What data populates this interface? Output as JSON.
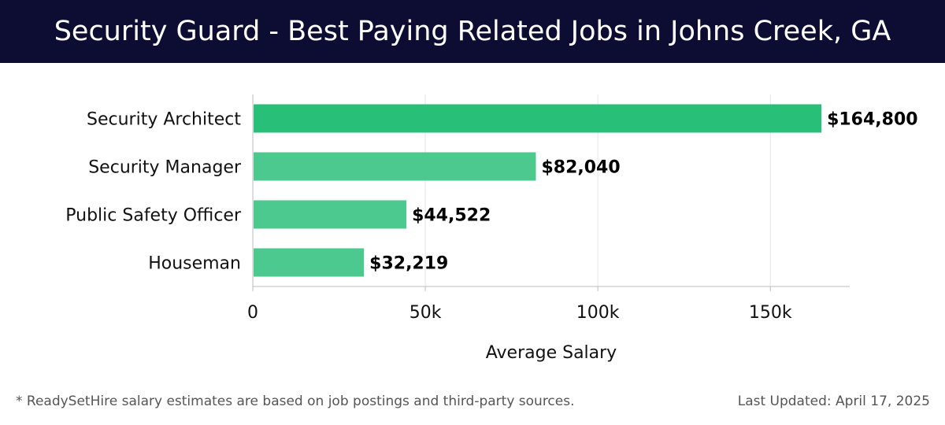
{
  "header": {
    "title": "Security Guard - Best Paying Related Jobs in Johns Creek, GA"
  },
  "footer": {
    "note": "* ReadySetHire salary estimates are based on job postings and third-party sources.",
    "updated": "Last Updated: April 17, 2025"
  },
  "colors": {
    "header_bg": "#0d0d33",
    "bar_top": "#28c078",
    "bar_other": "#4cc98e",
    "grid": "#e4e4e4",
    "axis": "#bdbdbd"
  },
  "chart_data": {
    "type": "bar",
    "orientation": "horizontal",
    "title": "Security Guard - Best Paying Related Jobs in Johns Creek, GA",
    "categories": [
      "Security Architect",
      "Security Manager",
      "Public Safety Officer",
      "Houseman"
    ],
    "values": [
      164800,
      82040,
      44522,
      32219
    ],
    "value_labels": [
      "$164,800",
      "$82,040",
      "$44,522",
      "$32,219"
    ],
    "xlabel": "Average Salary",
    "ylabel": "",
    "xlim": [
      0,
      173000
    ],
    "xticks": [
      0,
      50000,
      100000,
      150000
    ],
    "xtick_labels": [
      "0",
      "50k",
      "100k",
      "150k"
    ],
    "grid": true
  }
}
